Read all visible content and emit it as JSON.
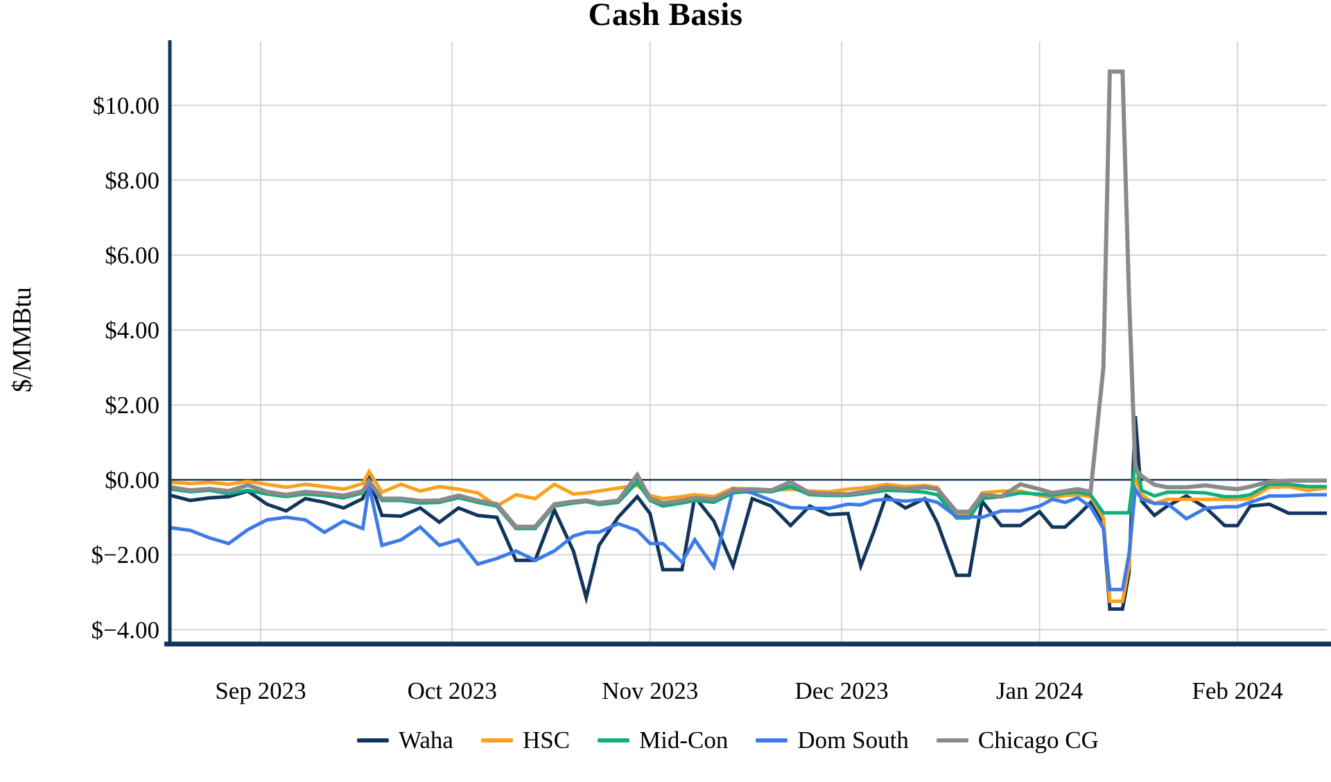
{
  "chart_data": {
    "type": "line",
    "title": "Cash Basis",
    "ylabel": "$/MMBtu",
    "xlabel": "",
    "x_range": [
      "2023-08-18",
      "2024-02-15"
    ],
    "ylim": [
      -4.31,
      11.7
    ],
    "grid": true,
    "zero_line": true,
    "legend_position": "bottom",
    "colors": {
      "grid": "#D6D6D6",
      "axis": "#12355B",
      "zero_line": "#12355B",
      "background": "#FFFFFF",
      "text": "#000000"
    },
    "x_ticks": [
      {
        "date": "2023-09-01",
        "label": "Sep 2023"
      },
      {
        "date": "2023-10-01",
        "label": "Oct 2023"
      },
      {
        "date": "2023-11-01",
        "label": "Nov 2023"
      },
      {
        "date": "2023-12-01",
        "label": "Dec 2023"
      },
      {
        "date": "2024-01-01",
        "label": "Jan 2024"
      },
      {
        "date": "2024-02-01",
        "label": "Feb 2024"
      }
    ],
    "y_ticks": [
      {
        "value": 10,
        "label": "$10.00"
      },
      {
        "value": 8,
        "label": "$8.00"
      },
      {
        "value": 6,
        "label": "$6.00"
      },
      {
        "value": 4,
        "label": "$4.00"
      },
      {
        "value": 2,
        "label": "$2.00"
      },
      {
        "value": 0,
        "label": "$0.00"
      },
      {
        "value": -2,
        "label": "$−2.00"
      },
      {
        "value": -4,
        "label": "$−4.00"
      }
    ],
    "x": [
      "2023-08-18",
      "2023-08-21",
      "2023-08-24",
      "2023-08-27",
      "2023-08-30",
      "2023-09-02",
      "2023-09-05",
      "2023-09-08",
      "2023-09-11",
      "2023-09-14",
      "2023-09-17",
      "2023-09-18",
      "2023-09-20",
      "2023-09-23",
      "2023-09-26",
      "2023-09-29",
      "2023-10-02",
      "2023-10-05",
      "2023-10-08",
      "2023-10-11",
      "2023-10-14",
      "2023-10-17",
      "2023-10-20",
      "2023-10-22",
      "2023-10-24",
      "2023-10-27",
      "2023-10-30",
      "2023-11-01",
      "2023-11-03",
      "2023-11-06",
      "2023-11-08",
      "2023-11-11",
      "2023-11-14",
      "2023-11-17",
      "2023-11-20",
      "2023-11-23",
      "2023-11-26",
      "2023-11-29",
      "2023-12-02",
      "2023-12-04",
      "2023-12-06",
      "2023-12-08",
      "2023-12-11",
      "2023-12-14",
      "2023-12-16",
      "2023-12-19",
      "2023-12-21",
      "2023-12-23",
      "2023-12-26",
      "2023-12-29",
      "2024-01-01",
      "2024-01-03",
      "2024-01-05",
      "2024-01-07",
      "2024-01-09",
      "2024-01-11",
      "2024-01-12",
      "2024-01-14",
      "2024-01-15",
      "2024-01-16",
      "2024-01-17",
      "2024-01-19",
      "2024-01-21",
      "2024-01-24",
      "2024-01-27",
      "2024-01-30",
      "2024-02-01",
      "2024-02-03",
      "2024-02-06",
      "2024-02-09",
      "2024-02-12",
      "2024-02-15"
    ],
    "series": [
      {
        "name": "Waha",
        "color": "#12355B",
        "stroke_width": 5,
        "values": [
          -0.42,
          -0.55,
          -0.48,
          -0.45,
          -0.3,
          -0.65,
          -0.83,
          -0.5,
          -0.6,
          -0.75,
          -0.5,
          0.05,
          -0.95,
          -0.97,
          -0.75,
          -1.13,
          -0.75,
          -0.95,
          -1.0,
          -2.15,
          -2.15,
          -0.8,
          -1.9,
          -3.15,
          -1.75,
          -1.0,
          -0.45,
          -0.9,
          -2.4,
          -2.4,
          -0.45,
          -1.1,
          -2.3,
          -0.5,
          -0.7,
          -1.22,
          -0.7,
          -0.93,
          -0.9,
          -2.3,
          -1.4,
          -0.42,
          -0.75,
          -0.5,
          -1.15,
          -2.55,
          -2.55,
          -0.57,
          -1.22,
          -1.22,
          -0.85,
          -1.26,
          -1.26,
          -0.95,
          -0.61,
          -1.2,
          -3.45,
          -3.45,
          -2.5,
          1.7,
          -0.57,
          -0.95,
          -0.7,
          -0.43,
          -0.74,
          -1.22,
          -1.22,
          -0.7,
          -0.65,
          -0.89,
          -0.89,
          -0.89
        ]
      },
      {
        "name": "HSC",
        "color": "#F9A11B",
        "stroke_width": 5,
        "values": [
          -0.07,
          -0.1,
          -0.07,
          -0.12,
          -0.04,
          -0.12,
          -0.2,
          -0.12,
          -0.18,
          -0.25,
          -0.1,
          0.22,
          -0.33,
          -0.12,
          -0.3,
          -0.18,
          -0.25,
          -0.35,
          -0.7,
          -0.4,
          -0.5,
          -0.12,
          -0.38,
          -0.35,
          -0.3,
          -0.22,
          -0.15,
          -0.42,
          -0.5,
          -0.45,
          -0.4,
          -0.45,
          -0.22,
          -0.25,
          -0.28,
          -0.25,
          -0.3,
          -0.32,
          -0.25,
          -0.22,
          -0.18,
          -0.12,
          -0.18,
          -0.15,
          -0.2,
          -0.93,
          -0.93,
          -0.35,
          -0.3,
          -0.3,
          -0.42,
          -0.48,
          -0.42,
          -0.4,
          -0.45,
          -1.0,
          -3.24,
          -3.24,
          -2.3,
          0.07,
          -0.4,
          -0.63,
          -0.52,
          -0.52,
          -0.52,
          -0.52,
          -0.52,
          -0.5,
          -0.2,
          -0.18,
          -0.28,
          -0.22
        ]
      },
      {
        "name": "Mid-Con",
        "color": "#0FAE7E",
        "stroke_width": 5,
        "values": [
          -0.25,
          -0.32,
          -0.28,
          -0.37,
          -0.28,
          -0.38,
          -0.45,
          -0.38,
          -0.42,
          -0.48,
          -0.35,
          -0.05,
          -0.55,
          -0.55,
          -0.62,
          -0.6,
          -0.48,
          -0.6,
          -0.7,
          -1.3,
          -1.3,
          -0.7,
          -0.62,
          -0.58,
          -0.66,
          -0.6,
          -0.06,
          -0.55,
          -0.7,
          -0.62,
          -0.55,
          -0.6,
          -0.35,
          -0.3,
          -0.32,
          -0.18,
          -0.4,
          -0.42,
          -0.42,
          -0.38,
          -0.33,
          -0.28,
          -0.3,
          -0.33,
          -0.4,
          -1.02,
          -1.02,
          -0.5,
          -0.45,
          -0.35,
          -0.38,
          -0.42,
          -0.35,
          -0.33,
          -0.4,
          -0.88,
          -0.88,
          -0.88,
          -0.88,
          0.48,
          -0.28,
          -0.43,
          -0.33,
          -0.33,
          -0.35,
          -0.45,
          -0.45,
          -0.4,
          -0.12,
          -0.12,
          -0.18,
          -0.18
        ]
      },
      {
        "name": "Dom South",
        "color": "#3D7BE8",
        "stroke_width": 5,
        "values": [
          -1.28,
          -1.35,
          -1.55,
          -1.7,
          -1.33,
          -1.07,
          -1.0,
          -1.07,
          -1.4,
          -1.1,
          -1.3,
          -0.15,
          -1.75,
          -1.6,
          -1.26,
          -1.75,
          -1.6,
          -2.25,
          -2.1,
          -1.9,
          -2.15,
          -1.9,
          -1.5,
          -1.4,
          -1.4,
          -1.17,
          -1.35,
          -1.7,
          -1.7,
          -2.2,
          -1.6,
          -2.33,
          -0.25,
          -0.35,
          -0.55,
          -0.74,
          -0.76,
          -0.76,
          -0.65,
          -0.67,
          -0.55,
          -0.52,
          -0.57,
          -0.52,
          -0.6,
          -0.98,
          -0.98,
          -1.0,
          -0.83,
          -0.83,
          -0.7,
          -0.52,
          -0.6,
          -0.48,
          -0.72,
          -1.3,
          -2.93,
          -2.93,
          -2.0,
          -0.25,
          -0.52,
          -0.63,
          -0.63,
          -1.04,
          -0.76,
          -0.72,
          -0.72,
          -0.6,
          -0.43,
          -0.43,
          -0.4,
          -0.4
        ]
      },
      {
        "name": "Chicago CG",
        "color": "#8A8A8A",
        "stroke_width": 6,
        "values": [
          -0.2,
          -0.28,
          -0.24,
          -0.3,
          -0.14,
          -0.32,
          -0.4,
          -0.32,
          -0.36,
          -0.42,
          -0.3,
          -0.03,
          -0.5,
          -0.5,
          -0.56,
          -0.55,
          -0.42,
          -0.55,
          -0.65,
          -1.25,
          -1.25,
          -0.65,
          -0.58,
          -0.55,
          -0.62,
          -0.55,
          0.13,
          -0.5,
          -0.62,
          -0.55,
          -0.48,
          -0.52,
          -0.28,
          -0.25,
          -0.28,
          -0.06,
          -0.35,
          -0.38,
          -0.38,
          -0.33,
          -0.28,
          -0.2,
          -0.25,
          -0.2,
          -0.25,
          -0.85,
          -0.85,
          -0.4,
          -0.45,
          -0.12,
          -0.25,
          -0.35,
          -0.3,
          -0.25,
          -0.32,
          3.0,
          10.9,
          10.9,
          5.0,
          0.3,
          0.1,
          -0.13,
          -0.2,
          -0.2,
          -0.15,
          -0.22,
          -0.25,
          -0.18,
          -0.05,
          -0.02,
          -0.02,
          -0.02
        ]
      }
    ]
  }
}
